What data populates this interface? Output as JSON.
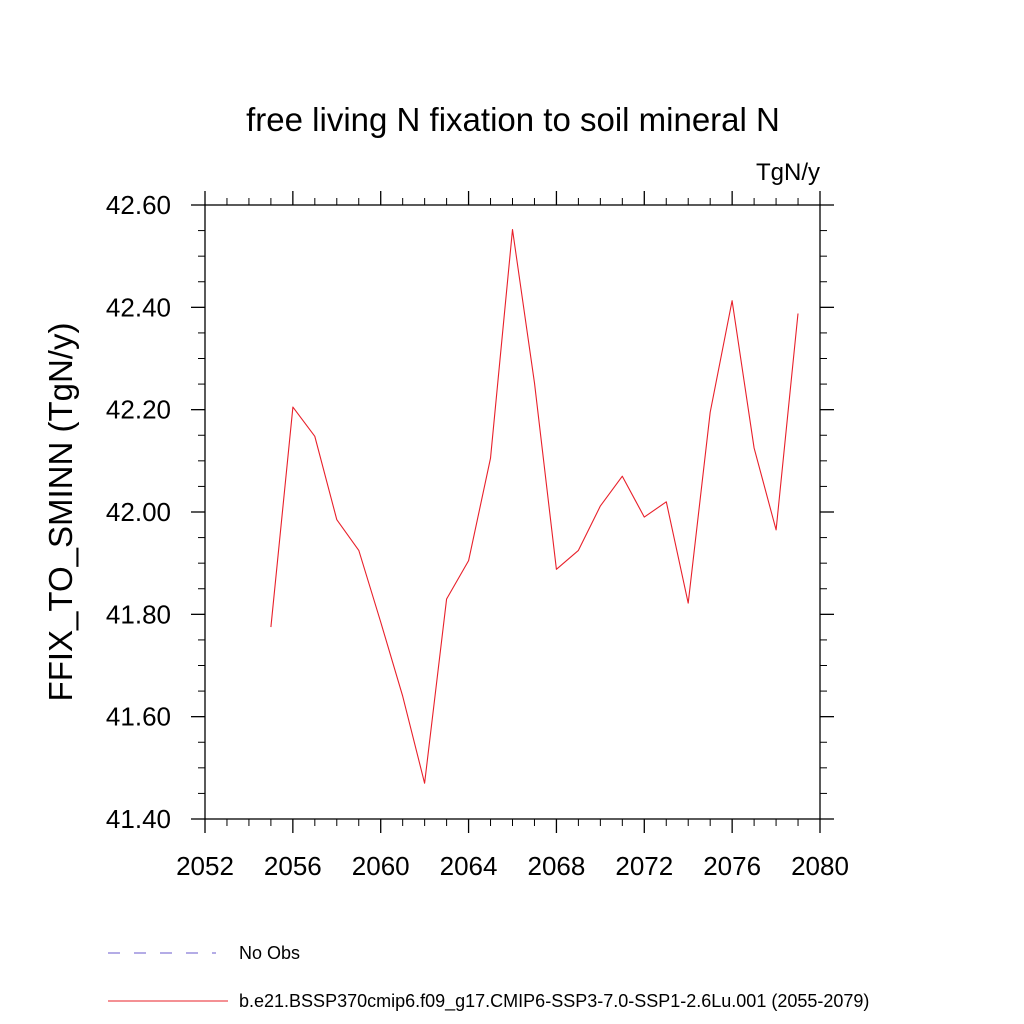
{
  "chart_data": {
    "type": "line",
    "title": "free living N fixation to soil mineral N",
    "units_label": "TgN/y",
    "ylabel": "FFIX_TO_SMINN  (TgN/y)",
    "xlabel": "",
    "xlim": [
      2052,
      2080
    ],
    "ylim": [
      41.4,
      42.6
    ],
    "x_ticks": [
      "2052",
      "2056",
      "2060",
      "2064",
      "2068",
      "2072",
      "2076",
      "2080"
    ],
    "y_ticks": [
      "41.40",
      "41.60",
      "41.80",
      "42.00",
      "42.20",
      "42.40",
      "42.60"
    ],
    "x_tick_values": [
      2052,
      2056,
      2060,
      2064,
      2068,
      2072,
      2076,
      2080
    ],
    "y_tick_values": [
      41.4,
      41.6,
      41.8,
      42.0,
      42.2,
      42.4,
      42.6
    ],
    "grid": false,
    "legend_position": "bottom",
    "legend": [
      {
        "label": "No Obs",
        "color": "#6a5acd",
        "style": "dashed"
      },
      {
        "label": "b.e21.BSSP370cmip6.f09_g17.CMIP6-SSP3-7.0-SSP1-2.6Lu.001 (2055-2079)",
        "color": "#e8202a",
        "style": "solid"
      }
    ],
    "series": [
      {
        "name": "b.e21.BSSP370cmip6.f09_g17.CMIP6-SSP3-7.0-SSP1-2.6Lu.001 (2055-2079)",
        "color": "#e8202a",
        "x": [
          2055,
          2056,
          2057,
          2058,
          2059,
          2060,
          2061,
          2062,
          2063,
          2064,
          2065,
          2066,
          2067,
          2068,
          2069,
          2070,
          2071,
          2072,
          2073,
          2074,
          2075,
          2076,
          2077,
          2078,
          2079
        ],
        "y": [
          41.775,
          42.205,
          42.148,
          41.985,
          41.925,
          41.785,
          41.64,
          41.47,
          41.83,
          41.905,
          42.105,
          42.552,
          42.252,
          41.888,
          41.925,
          42.012,
          42.07,
          41.99,
          42.02,
          41.822,
          42.195,
          42.413,
          42.125,
          41.965,
          42.388
        ]
      }
    ]
  }
}
